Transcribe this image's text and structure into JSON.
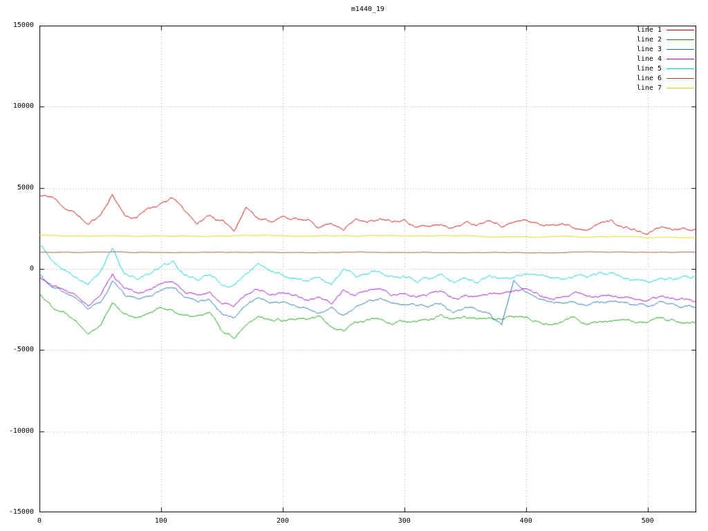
{
  "chart_data": {
    "type": "line",
    "title": "m1440_19",
    "xlabel": "",
    "ylabel": "",
    "xlim": [
      0,
      540
    ],
    "ylim": [
      -15000,
      15000
    ],
    "xticks": [
      0,
      100,
      200,
      300,
      400,
      500
    ],
    "yticks": [
      -15000,
      -10000,
      -5000,
      0,
      5000,
      10000,
      15000
    ],
    "grid": true,
    "grid_style": "dotted",
    "legend_position": "top-right",
    "background_color": "#ffffff",
    "anchor_step": 10,
    "series": [
      {
        "name": "line 1",
        "color": "#cc0000",
        "seed": 11,
        "noise": 220,
        "values": [
          4500,
          4400,
          3800,
          3400,
          2700,
          3300,
          4600,
          3400,
          3200,
          3900,
          4100,
          4400,
          3500,
          2800,
          3300,
          2900,
          2400,
          3900,
          3300,
          3100,
          3300,
          3200,
          3000,
          2600,
          3000,
          2500,
          3300,
          3000,
          3200,
          2900,
          3000,
          2700,
          2600,
          2800,
          2700,
          3000,
          2900,
          3200,
          2800,
          3000,
          3100,
          2900,
          2800,
          3000,
          2700,
          2600,
          2900,
          3100,
          2700,
          2500,
          2200,
          2700,
          2600,
          2700,
          2500
        ]
      },
      {
        "name": "line 2",
        "color": "#00a000",
        "seed": 22,
        "noise": 220,
        "values": [
          -1500,
          -2200,
          -2500,
          -3000,
          -3800,
          -3300,
          -1900,
          -2600,
          -2800,
          -2600,
          -2300,
          -2400,
          -2800,
          -2900,
          -2700,
          -4000,
          -4300,
          -3300,
          -2700,
          -3000,
          -3000,
          -3100,
          -3300,
          -3100,
          -3600,
          -3800,
          -3200,
          -3100,
          -3000,
          -3200,
          -3100,
          -3300,
          -3200,
          -3000,
          -3300,
          -3100,
          -3200,
          -3000,
          -3200,
          -3100,
          -3000,
          -3100,
          -3300,
          -3200,
          -3000,
          -3200,
          -3100,
          -3000,
          -3100,
          -3200,
          -3300,
          -3200,
          -3300,
          -3400,
          -3400
        ]
      },
      {
        "name": "line 3",
        "color": "#1a70b0",
        "seed": 33,
        "noise": 200,
        "values": [
          -300,
          -1200,
          -1500,
          -2000,
          -2600,
          -2200,
          -900,
          -1700,
          -2000,
          -1800,
          -1500,
          -1200,
          -1800,
          -2100,
          -1900,
          -2800,
          -3000,
          -2200,
          -1700,
          -2000,
          -2000,
          -2200,
          -2400,
          -2600,
          -2200,
          -2900,
          -2300,
          -2100,
          -2000,
          -2300,
          -2200,
          -2400,
          -2300,
          -2100,
          -2600,
          -2300,
          -2400,
          -2700,
          -3600,
          -900,
          -1600,
          -2000,
          -2200,
          -2300,
          -2100,
          -2300,
          -2200,
          -2100,
          -2200,
          -2300,
          -2400,
          -2200,
          -2300,
          -2400,
          -2500
        ]
      },
      {
        "name": "line 4",
        "color": "#a000c8",
        "seed": 44,
        "noise": 200,
        "values": [
          -500,
          -1000,
          -1300,
          -1700,
          -2200,
          -1700,
          -300,
          -1200,
          -1500,
          -1300,
          -900,
          -600,
          -1400,
          -1600,
          -1400,
          -2200,
          -2400,
          -1600,
          -1200,
          -1500,
          -1500,
          -1700,
          -1900,
          -1600,
          -2100,
          -1300,
          -1700,
          -1500,
          -1400,
          -1700,
          -1600,
          -1800,
          -1700,
          -1500,
          -2000,
          -1700,
          -1800,
          -1600,
          -1700,
          -1500,
          -1400,
          -1600,
          -1800,
          -1700,
          -1500,
          -1700,
          -1600,
          -1500,
          -1600,
          -1700,
          -1800,
          -1600,
          -1700,
          -1800,
          -1900
        ]
      },
      {
        "name": "line 5",
        "color": "#00cccc",
        "seed": 55,
        "noise": 250,
        "values": [
          1500,
          600,
          200,
          -300,
          -800,
          -200,
          1400,
          -100,
          -400,
          -200,
          200,
          500,
          -200,
          -600,
          -400,
          -900,
          -1100,
          -300,
          100,
          -200,
          -200,
          -400,
          -700,
          -400,
          -900,
          0,
          -500,
          -300,
          -200,
          -500,
          -400,
          -600,
          -500,
          -300,
          -800,
          -500,
          -600,
          -400,
          -500,
          -300,
          -200,
          -400,
          -600,
          -500,
          -300,
          -500,
          -400,
          -300,
          -400,
          -500,
          -600,
          -400,
          -500,
          -600,
          -700
        ]
      },
      {
        "name": "line 6",
        "color": "#a0522d",
        "seed": 66,
        "noise": 35,
        "values": [
          1050,
          1050,
          1040,
          1050,
          1040,
          1050,
          1060,
          1050,
          1040,
          1050,
          1050,
          1040,
          1050,
          1040,
          1050,
          1040,
          1030,
          1050,
          1040,
          1050,
          1040,
          1050,
          1040,
          1030,
          1040,
          1050,
          1040,
          1030,
          1040,
          1050,
          1040,
          1030,
          1040,
          1030,
          1040,
          1030,
          1040,
          1030,
          1040,
          1030,
          1020,
          1030,
          1020,
          1030,
          1020,
          1030,
          1020,
          1010,
          1020,
          1010,
          1000,
          1010,
          1000,
          1010,
          1000
        ]
      },
      {
        "name": "line 7",
        "color": "#d8d800",
        "seed": 77,
        "noise": 45,
        "values": [
          2100,
          2080,
          2060,
          2080,
          2060,
          2070,
          2080,
          2060,
          2050,
          2060,
          2070,
          2050,
          2060,
          2050,
          2040,
          2050,
          2030,
          2050,
          2040,
          2050,
          2030,
          2040,
          2030,
          2020,
          2030,
          2040,
          2020,
          2030,
          2020,
          2030,
          2010,
          2020,
          2010,
          2020,
          2000,
          2010,
          2000,
          2010,
          2000,
          1990,
          2000,
          1990,
          2000,
          1980,
          1990,
          1980,
          1990,
          1970,
          1960,
          1950,
          1900,
          1950,
          1960,
          1970,
          1960
        ]
      }
    ]
  }
}
